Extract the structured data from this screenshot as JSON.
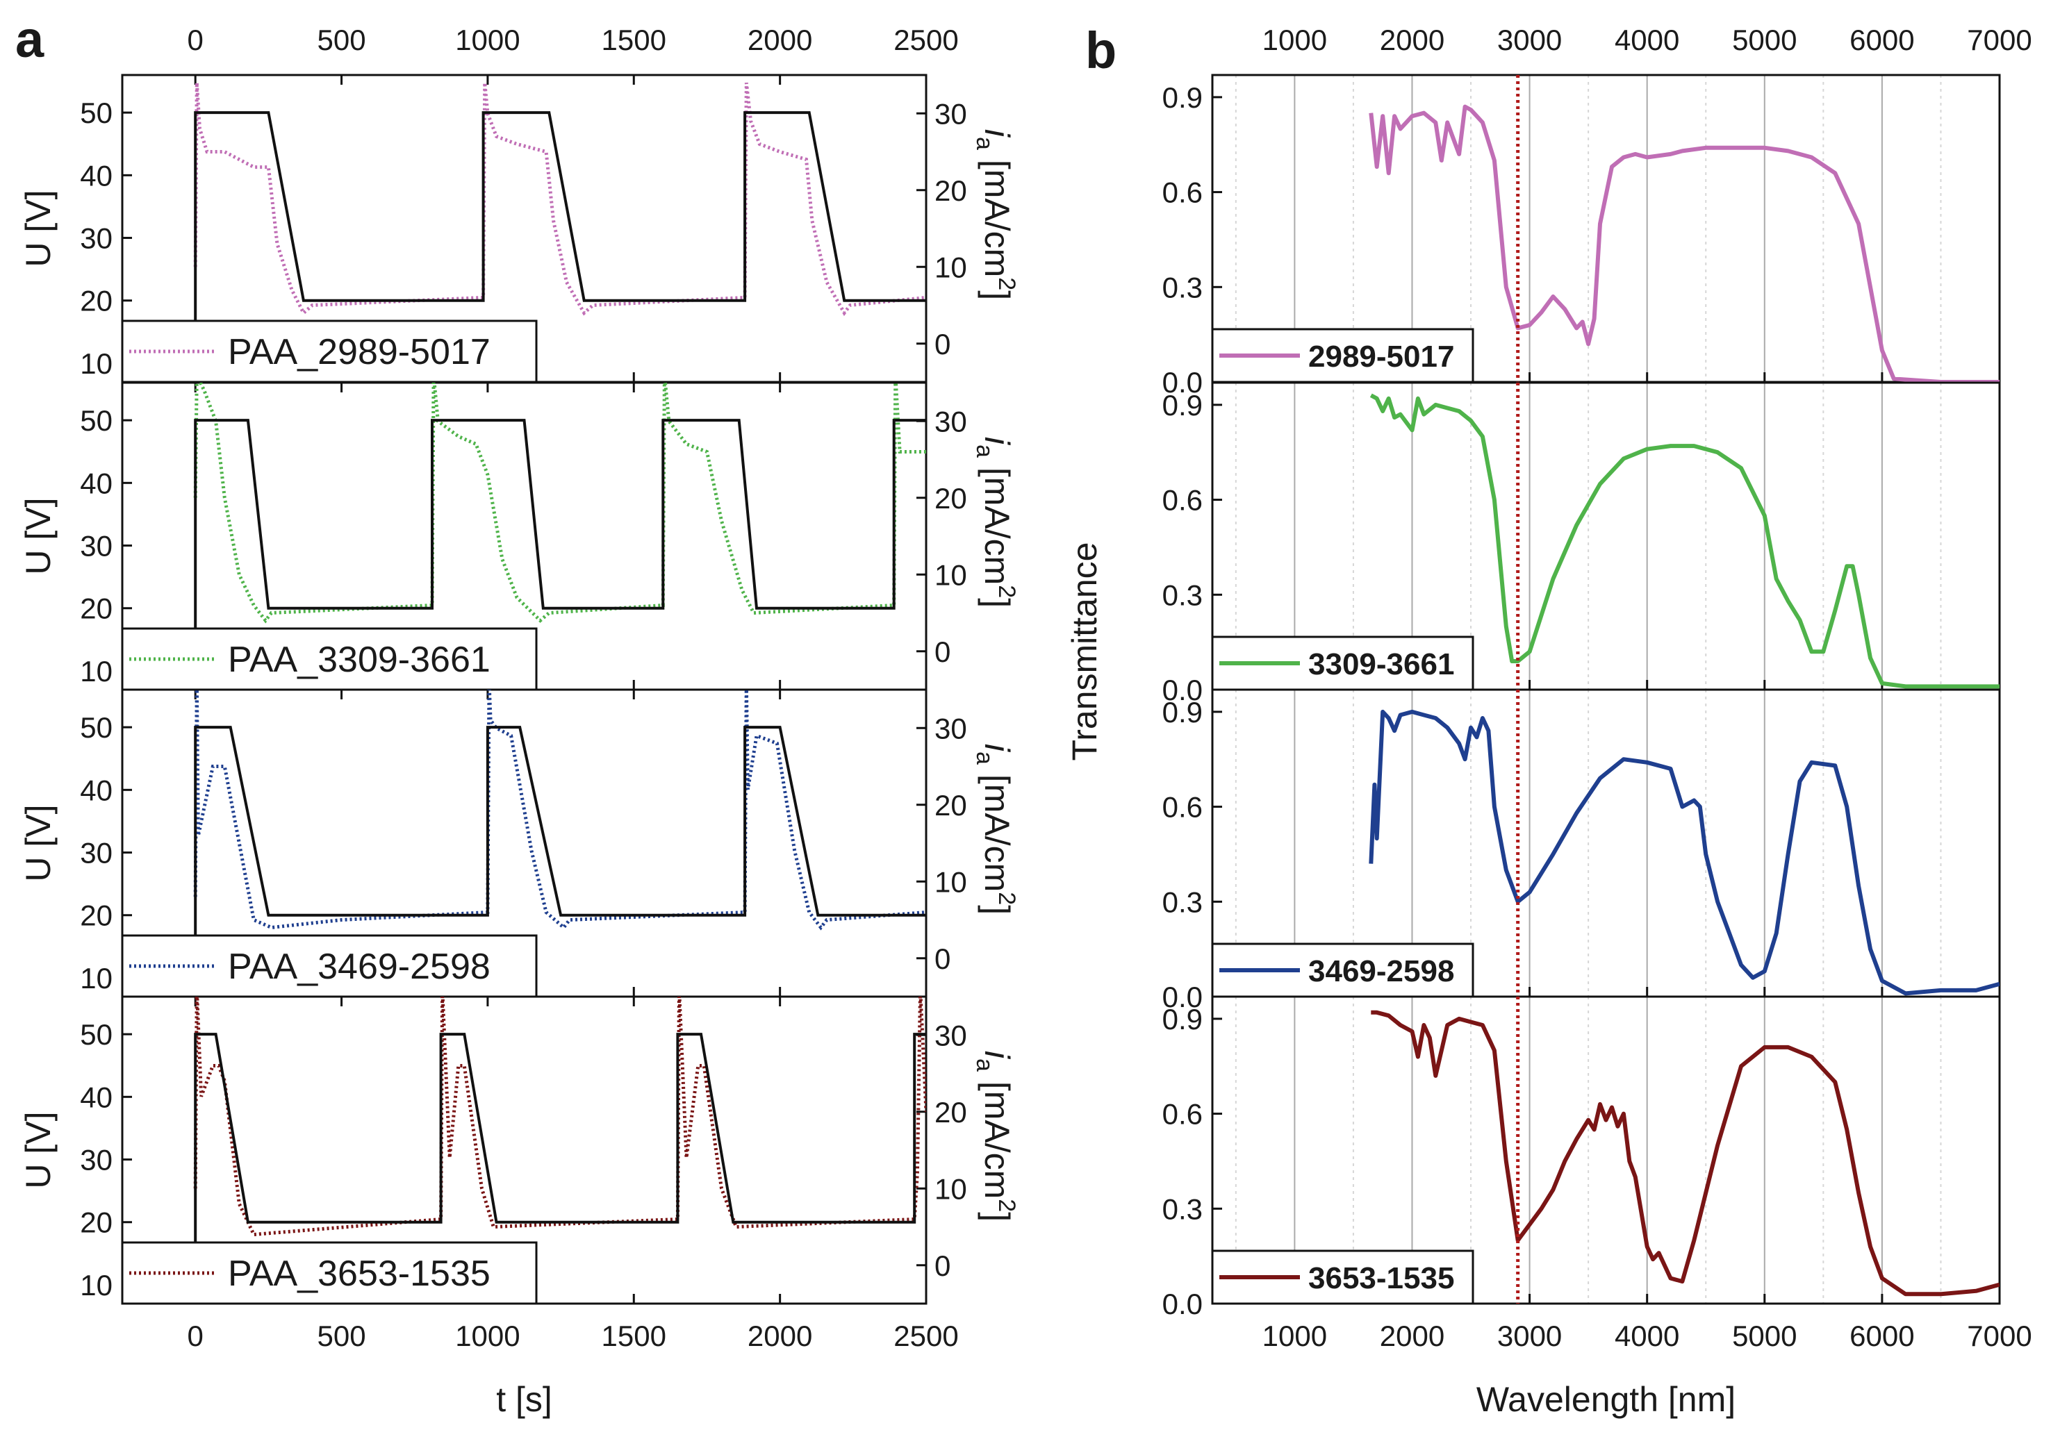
{
  "figure": {
    "panel_a_label": "a",
    "panel_b_label": "b"
  },
  "colors": {
    "pink": "#c06eb5",
    "green": "#4fb34a",
    "blue": "#1f3f8f",
    "darkred": "#7a1515",
    "voltage": "#111111",
    "marker": "#b01a1a"
  },
  "chart_data": [
    {
      "panel": "a",
      "type": "line",
      "xlabel": "t [s]",
      "ylabel_left": "U [V]",
      "ylabel_right": "i_a [mA/cm²]",
      "ylabel_right_parts": {
        "i": "i",
        "sub": "a",
        "unit": " [mA/cm",
        "sup": "2",
        "close": "]"
      },
      "xlim": [
        -250,
        2500
      ],
      "ylim_left": [
        7,
        56
      ],
      "ylim_right": [
        -5,
        35
      ],
      "xticks": [
        0,
        500,
        1000,
        1500,
        2000,
        2500
      ],
      "yticks_left": [
        10,
        20,
        30,
        40,
        50
      ],
      "yticks_right": [
        0,
        10,
        20,
        30
      ],
      "subplots": [
        {
          "legend": "PAA_2989-5017",
          "color": "pink",
          "voltage": {
            "x": [
              0,
              0,
              120,
              250,
              370,
              985,
              985,
              1090,
              1210,
              1330,
              1880,
              1880,
              1980,
              2100,
              2220,
              2500
            ],
            "y": [
              15,
              50,
              50,
              50,
              20,
              20,
              50,
              50,
              50,
              20,
              20,
              50,
              50,
              50,
              20,
              20
            ]
          },
          "current": {
            "x": [
              0,
              5,
              15,
              40,
              100,
              200,
              250,
              280,
              330,
              370,
              400,
              985,
              990,
              1000,
              1030,
              1100,
              1200,
              1225,
              1270,
              1330,
              1360,
              1880,
              1885,
              1900,
              1930,
              2000,
              2090,
              2110,
              2160,
              2220,
              2240,
              2500
            ],
            "y": [
              10,
              34,
              28,
              25,
              25,
              23,
              23,
              13,
              7,
              4,
              5,
              6,
              34,
              30,
              27,
              26,
              25,
              16,
              8,
              4,
              5,
              6,
              34,
              29,
              26,
              25,
              24,
              16,
              8,
              4,
              5,
              6
            ]
          }
        },
        {
          "legend": "PAA_3309-3661",
          "color": "green",
          "voltage": {
            "x": [
              0,
              0,
              70,
              180,
              250,
              810,
              810,
              1000,
              1125,
              1190,
              1600,
              1600,
              1720,
              1860,
              1920,
              2390,
              2390,
              2500
            ],
            "y": [
              15,
              50,
              50,
              50,
              20,
              20,
              50,
              50,
              50,
              20,
              20,
              50,
              50,
              50,
              20,
              20,
              50,
              50
            ]
          },
          "current": {
            "x": [
              0,
              5,
              30,
              70,
              100,
              150,
              200,
              240,
              260,
              810,
              815,
              830,
              900,
              960,
              1000,
              1050,
              1100,
              1180,
              1210,
              1600,
              1605,
              1620,
              1680,
              1750,
              1800,
              1870,
              1910,
              2390,
              2395,
              2410,
              2450,
              2500
            ],
            "y": [
              20,
              36,
              34,
              30,
              20,
              10,
              6,
              4,
              5,
              6,
              36,
              30,
              28,
              27,
              23,
              12,
              7,
              4,
              5,
              6,
              36,
              30,
              27,
              26,
              17,
              8,
              5,
              6,
              36,
              26,
              26,
              26
            ]
          }
        },
        {
          "legend": "PAA_3469-2598",
          "color": "blue",
          "voltage": {
            "x": [
              0,
              0,
              30,
              120,
              250,
              1000,
              1000,
              1040,
              1110,
              1250,
              1880,
              1880,
              1930,
              2000,
              2130,
              2500
            ],
            "y": [
              15,
              50,
              50,
              50,
              20,
              20,
              50,
              50,
              50,
              20,
              20,
              50,
              50,
              50,
              20,
              20
            ]
          },
          "current": {
            "x": [
              0,
              5,
              10,
              60,
              100,
              150,
              200,
              260,
              500,
              1000,
              1005,
              1010,
              1030,
              1080,
              1150,
              1200,
              1260,
              1280,
              1880,
              1885,
              1890,
              1920,
              1990,
              2050,
              2100,
              2140,
              2160,
              2500
            ],
            "y": [
              8,
              36,
              16,
              25,
              25,
              15,
              5,
              4,
              5,
              6,
              36,
              31,
              30,
              29,
              14,
              6,
              4,
              5,
              6,
              36,
              22,
              29,
              28,
              14,
              6,
              4,
              5,
              6
            ]
          }
        },
        {
          "legend": "PAA_3653-1535",
          "color": "darkred",
          "voltage": {
            "x": [
              0,
              0,
              70,
              180,
              840,
              840,
              920,
              1030,
              1650,
              1650,
              1730,
              1840,
              2460,
              2460,
              2500
            ],
            "y": [
              15,
              50,
              50,
              20,
              20,
              50,
              50,
              20,
              20,
              50,
              50,
              20,
              20,
              50,
              50
            ]
          },
          "current": {
            "x": [
              0,
              5,
              20,
              60,
              80,
              100,
              150,
              200,
              840,
              845,
              870,
              900,
              920,
              980,
              1020,
              1650,
              1655,
              1680,
              1720,
              1740,
              1800,
              1850,
              2460,
              2470,
              2480,
              2500
            ],
            "y": [
              10,
              36,
              22,
              26,
              26,
              24,
              8,
              4,
              6,
              36,
              14,
              26,
              26,
              10,
              5,
              6,
              36,
              14,
              26,
              26,
              10,
              5,
              6,
              12,
              36,
              20
            ]
          }
        }
      ]
    },
    {
      "panel": "b",
      "type": "line",
      "xlabel": "Wavelength [nm]",
      "ylabel": "Transmittance",
      "xlim": [
        300,
        7000
      ],
      "ylim": [
        0,
        0.97
      ],
      "xticks": [
        1000,
        2000,
        3000,
        4000,
        5000,
        6000,
        7000
      ],
      "yticks": [
        0.0,
        0.3,
        0.6,
        0.9
      ],
      "ytick_labels": [
        "0.0",
        "0.3",
        "0.6",
        "0.9"
      ],
      "marker_wavelength": 2900,
      "series": [
        {
          "name": "2989-5017",
          "color": "pink",
          "x": [
            1650,
            1700,
            1750,
            1800,
            1850,
            1900,
            2000,
            2100,
            2200,
            2250,
            2300,
            2400,
            2450,
            2500,
            2550,
            2600,
            2700,
            2800,
            2900,
            3000,
            3100,
            3200,
            3300,
            3400,
            3450,
            3500,
            3550,
            3600,
            3700,
            3800,
            3900,
            4000,
            4200,
            4300,
            4500,
            5000,
            5200,
            5400,
            5600,
            5800,
            5900,
            6000,
            6100,
            6500,
            7000
          ],
          "y": [
            0.85,
            0.68,
            0.84,
            0.66,
            0.84,
            0.8,
            0.84,
            0.85,
            0.82,
            0.7,
            0.82,
            0.72,
            0.87,
            0.86,
            0.84,
            0.82,
            0.7,
            0.3,
            0.17,
            0.18,
            0.22,
            0.27,
            0.23,
            0.17,
            0.19,
            0.12,
            0.2,
            0.5,
            0.68,
            0.71,
            0.72,
            0.71,
            0.72,
            0.73,
            0.74,
            0.74,
            0.73,
            0.71,
            0.66,
            0.5,
            0.3,
            0.1,
            0.01,
            0.0,
            0.0
          ]
        },
        {
          "name": "3309-3661",
          "color": "green",
          "x": [
            1650,
            1700,
            1750,
            1800,
            1850,
            1900,
            2000,
            2050,
            2100,
            2200,
            2300,
            2400,
            2500,
            2600,
            2700,
            2800,
            2850,
            2900,
            3000,
            3200,
            3400,
            3600,
            3800,
            4000,
            4200,
            4400,
            4600,
            4800,
            5000,
            5100,
            5200,
            5300,
            5400,
            5500,
            5600,
            5700,
            5750,
            5800,
            5900,
            6000,
            6200,
            7000
          ],
          "y": [
            0.93,
            0.92,
            0.88,
            0.92,
            0.86,
            0.87,
            0.82,
            0.92,
            0.87,
            0.9,
            0.89,
            0.88,
            0.85,
            0.8,
            0.6,
            0.2,
            0.09,
            0.09,
            0.12,
            0.35,
            0.52,
            0.65,
            0.73,
            0.76,
            0.77,
            0.77,
            0.75,
            0.7,
            0.55,
            0.35,
            0.28,
            0.22,
            0.12,
            0.12,
            0.25,
            0.39,
            0.39,
            0.3,
            0.1,
            0.02,
            0.01,
            0.01
          ]
        },
        {
          "name": "3469-2598",
          "color": "blue",
          "x": [
            1650,
            1680,
            1700,
            1750,
            1800,
            1850,
            1900,
            2000,
            2100,
            2200,
            2300,
            2400,
            2450,
            2500,
            2550,
            2600,
            2650,
            2700,
            2800,
            2900,
            3000,
            3200,
            3400,
            3600,
            3800,
            4000,
            4200,
            4300,
            4400,
            4450,
            4500,
            4600,
            4700,
            4800,
            4900,
            5000,
            5100,
            5200,
            5300,
            5400,
            5600,
            5700,
            5800,
            5900,
            6000,
            6200,
            6500,
            6800,
            7000
          ],
          "y": [
            0.42,
            0.67,
            0.5,
            0.9,
            0.88,
            0.84,
            0.89,
            0.9,
            0.89,
            0.88,
            0.85,
            0.8,
            0.75,
            0.85,
            0.82,
            0.88,
            0.84,
            0.6,
            0.4,
            0.3,
            0.33,
            0.45,
            0.58,
            0.69,
            0.75,
            0.74,
            0.72,
            0.6,
            0.62,
            0.6,
            0.45,
            0.3,
            0.2,
            0.1,
            0.06,
            0.08,
            0.2,
            0.45,
            0.68,
            0.74,
            0.73,
            0.6,
            0.35,
            0.15,
            0.05,
            0.01,
            0.02,
            0.02,
            0.04
          ]
        },
        {
          "name": "3653-1535",
          "color": "darkred",
          "x": [
            1650,
            1700,
            1800,
            1900,
            2000,
            2050,
            2100,
            2150,
            2200,
            2250,
            2300,
            2400,
            2500,
            2600,
            2700,
            2800,
            2900,
            3000,
            3100,
            3200,
            3300,
            3400,
            3500,
            3550,
            3600,
            3650,
            3700,
            3750,
            3800,
            3850,
            3900,
            4000,
            4050,
            4100,
            4200,
            4300,
            4400,
            4600,
            4800,
            5000,
            5200,
            5400,
            5600,
            5700,
            5800,
            5900,
            6000,
            6200,
            6500,
            6800,
            7000
          ],
          "y": [
            0.92,
            0.92,
            0.91,
            0.88,
            0.86,
            0.78,
            0.88,
            0.84,
            0.72,
            0.8,
            0.88,
            0.9,
            0.89,
            0.88,
            0.8,
            0.45,
            0.2,
            0.25,
            0.3,
            0.36,
            0.45,
            0.52,
            0.58,
            0.55,
            0.63,
            0.58,
            0.62,
            0.56,
            0.6,
            0.45,
            0.4,
            0.18,
            0.14,
            0.16,
            0.08,
            0.07,
            0.2,
            0.5,
            0.75,
            0.81,
            0.81,
            0.78,
            0.7,
            0.55,
            0.35,
            0.18,
            0.08,
            0.03,
            0.03,
            0.04,
            0.06
          ]
        }
      ]
    }
  ]
}
